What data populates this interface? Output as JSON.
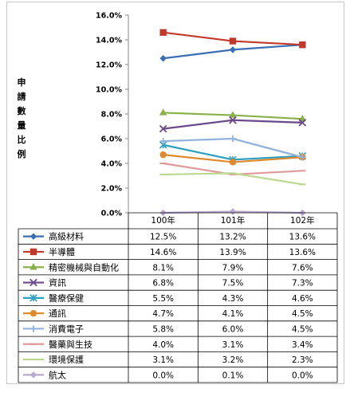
{
  "chart_data": {
    "type": "line",
    "title": "",
    "xlabel": "",
    "ylabel": "申請數量比例",
    "categories": [
      "100年",
      "101年",
      "102年"
    ],
    "ylim": [
      0,
      16
    ],
    "yticks": [
      "0.0%",
      "2.0%",
      "4.0%",
      "6.0%",
      "8.0%",
      "10.0%",
      "12.0%",
      "14.0%",
      "16.0%"
    ],
    "grid": false,
    "legend": "data-table-below",
    "series": [
      {
        "name": "高級材料",
        "color": "#3a6fb5",
        "marker": "diamond",
        "values": [
          12.5,
          13.2,
          13.6
        ],
        "labels": [
          "12.5%",
          "13.2%",
          "13.6%"
        ]
      },
      {
        "name": "半導體",
        "color": "#c0392b",
        "marker": "square",
        "values": [
          14.6,
          13.9,
          13.6
        ],
        "labels": [
          "14.6%",
          "13.9%",
          "13.6%"
        ]
      },
      {
        "name": "精密機械與自動化",
        "color": "#8ab04a",
        "marker": "triangle",
        "values": [
          8.1,
          7.9,
          7.6
        ],
        "labels": [
          "8.1%",
          "7.9%",
          "7.6%"
        ]
      },
      {
        "name": "資訊",
        "color": "#6a4a8c",
        "marker": "x",
        "values": [
          6.8,
          7.5,
          7.3
        ],
        "labels": [
          "6.8%",
          "7.5%",
          "7.3%"
        ]
      },
      {
        "name": "醫療保健",
        "color": "#2fa0c0",
        "marker": "star",
        "values": [
          5.5,
          4.3,
          4.6
        ],
        "labels": [
          "5.5%",
          "4.3%",
          "4.6%"
        ]
      },
      {
        "name": "通訊",
        "color": "#e08a2e",
        "marker": "circle",
        "values": [
          4.7,
          4.1,
          4.5
        ],
        "labels": [
          "4.7%",
          "4.1%",
          "4.5%"
        ]
      },
      {
        "name": "消費電子",
        "color": "#90b2dc",
        "marker": "plus",
        "values": [
          5.8,
          6.0,
          4.5
        ],
        "labels": [
          "5.8%",
          "6.0%",
          "4.5%"
        ]
      },
      {
        "name": "醫藥與生技",
        "color": "#e09a9a",
        "marker": "dash",
        "values": [
          4.0,
          3.1,
          3.4
        ],
        "labels": [
          "4.0%",
          "3.1%",
          "3.4%"
        ]
      },
      {
        "name": "環境保護",
        "color": "#bcd890",
        "marker": "dash",
        "values": [
          3.1,
          3.2,
          2.3
        ],
        "labels": [
          "3.1%",
          "3.2%",
          "2.3%"
        ]
      },
      {
        "name": "航太",
        "color": "#b9a8d0",
        "marker": "diamond",
        "values": [
          0.0,
          0.1,
          0.0
        ],
        "labels": [
          "0.0%",
          "0.1%",
          "0.0%"
        ]
      }
    ]
  }
}
